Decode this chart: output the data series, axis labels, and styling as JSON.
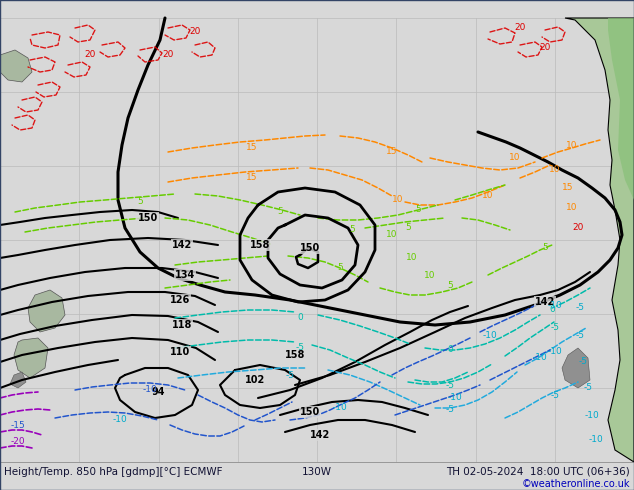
{
  "bottom_left_label": "Height/Temp. 850 hPa [gdmp][°C] ECMWF",
  "bottom_center_label": "130W",
  "bottom_right_label": "TH 02-05-2024  18:00 UTC (06+36)",
  "copyright": "©weatheronline.co.uk",
  "bg_color": "#d8d8d8",
  "land_color_nz": "#a8b8a0",
  "land_color_sa": "#a8c898",
  "land_color_sa2": "#88c078",
  "land_color_gray": "#909090",
  "ocean_color": "#d8d8d8",
  "border_color": "#000000",
  "grid_color": "#bbbbbb",
  "label_fontsize": 7.5,
  "black": "#000000",
  "red": "#dd0000",
  "orange": "#ff8800",
  "yellow_green": "#88bb00",
  "lime": "#66cc00",
  "cyan": "#00aacc",
  "cyan2": "#22aadd",
  "blue": "#2255cc",
  "purple": "#9900bb",
  "dark_green": "#008844",
  "teal": "#00bbaa"
}
